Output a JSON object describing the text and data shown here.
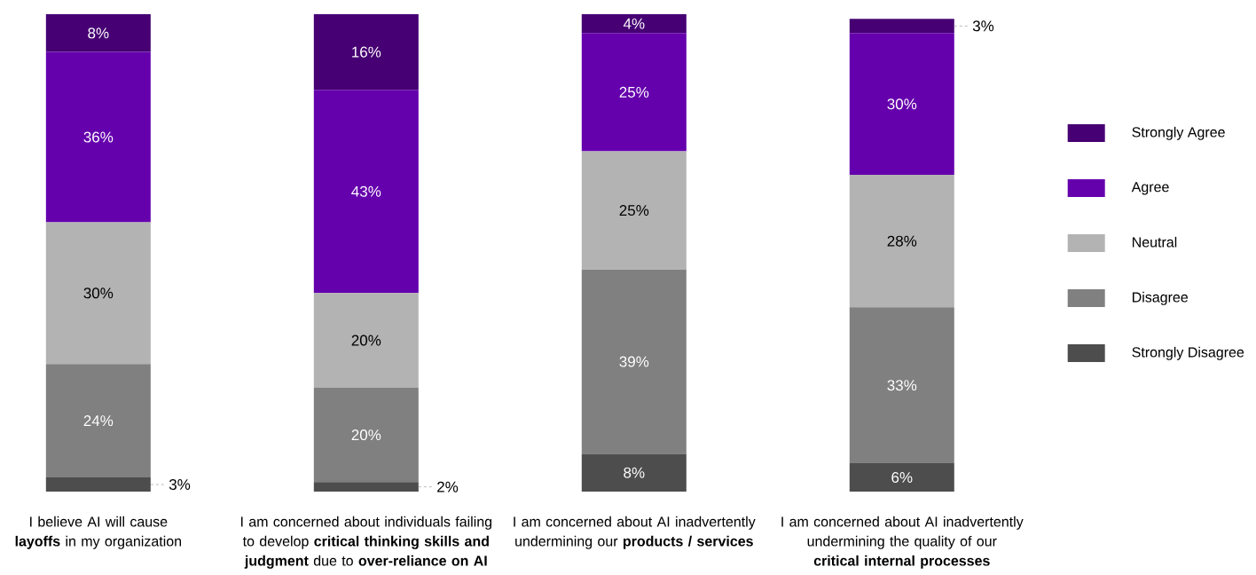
{
  "chart_data": {
    "type": "bar",
    "stacked": true,
    "legend": "right",
    "tick_labels": "x",
    "ylim": [
      0,
      101
    ],
    "categories": [
      "I believe AI will cause **layoffs** in my organization",
      "I am concerned about individuals failing to develop **critical thinking skills and judgment** due to **over-reliance on AI**",
      "I am concerned about AI inadvertently undermining our **products / services**",
      "I am concerned about AI inadvertently undermining the quality of our **critical internal processes**"
    ],
    "series": [
      {
        "name": "Strongly Disagree",
        "color": "#4d4d4d",
        "values": [
          3,
          2,
          8,
          6
        ],
        "value_labels": [
          "3%",
          "2%",
          "8%",
          "6%"
        ]
      },
      {
        "name": "Disagree",
        "color": "#808080",
        "values": [
          24,
          20,
          39,
          33
        ],
        "value_labels": [
          "24%",
          "20%",
          "39%",
          "33%"
        ]
      },
      {
        "name": "Neutral",
        "color": "#b3b3b3",
        "values": [
          30,
          20,
          25,
          28
        ],
        "value_labels": [
          "30%",
          "20%",
          "25%",
          "28%"
        ]
      },
      {
        "name": "Agree",
        "color": "#6500ad",
        "values": [
          36,
          43,
          25,
          30
        ],
        "value_labels": [
          "36%",
          "43%",
          "25%",
          "30%"
        ]
      },
      {
        "name": "Strongly Agree",
        "color": "#460073",
        "values": [
          8,
          16,
          4,
          3
        ],
        "value_labels": [
          "8%",
          "16%",
          "4%",
          "3%"
        ]
      }
    ]
  }
}
